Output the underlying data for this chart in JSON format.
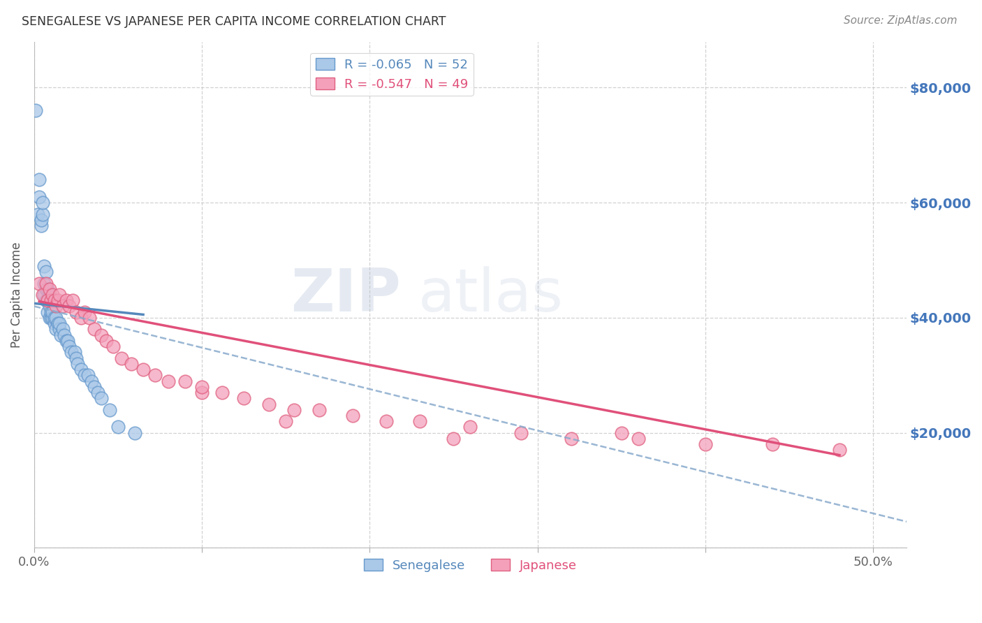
{
  "title": "SENEGALESE VS JAPANESE PER CAPITA INCOME CORRELATION CHART",
  "source": "Source: ZipAtlas.com",
  "ylabel": "Per Capita Income",
  "yticks": [
    0,
    20000,
    40000,
    60000,
    80000
  ],
  "ytick_labels": [
    "",
    "$20,000",
    "$40,000",
    "$60,000",
    "$80,000"
  ],
  "ylim": [
    0,
    88000
  ],
  "xlim": [
    0.0,
    0.52
  ],
  "legend_blue_r": "R = -0.065",
  "legend_blue_n": "N = 52",
  "legend_pink_r": "R = -0.547",
  "legend_pink_n": "N = 49",
  "blue_fill": "#aac8e8",
  "blue_edge": "#6699cc",
  "pink_fill": "#f4a0bb",
  "pink_edge": "#e06080",
  "blue_line": "#5588bb",
  "pink_line": "#e0507a",
  "dash_line": "#88aacc",
  "watermark_zip": "ZIP",
  "watermark_atlas": "atlas",
  "senegalese_x": [
    0.001,
    0.002,
    0.003,
    0.003,
    0.004,
    0.004,
    0.005,
    0.005,
    0.006,
    0.006,
    0.006,
    0.007,
    0.007,
    0.007,
    0.008,
    0.008,
    0.008,
    0.009,
    0.009,
    0.009,
    0.01,
    0.01,
    0.01,
    0.011,
    0.011,
    0.012,
    0.012,
    0.013,
    0.013,
    0.014,
    0.015,
    0.015,
    0.016,
    0.017,
    0.018,
    0.019,
    0.02,
    0.021,
    0.022,
    0.024,
    0.025,
    0.026,
    0.028,
    0.03,
    0.032,
    0.034,
    0.036,
    0.038,
    0.04,
    0.045,
    0.05,
    0.06
  ],
  "senegalese_y": [
    76000,
    58000,
    61000,
    64000,
    56000,
    57000,
    58000,
    60000,
    44000,
    46000,
    49000,
    43000,
    45000,
    48000,
    41000,
    43000,
    45000,
    40000,
    42000,
    44000,
    40000,
    41000,
    43000,
    40000,
    41000,
    39000,
    40000,
    38000,
    40000,
    39000,
    38000,
    39000,
    37000,
    38000,
    37000,
    36000,
    36000,
    35000,
    34000,
    34000,
    33000,
    32000,
    31000,
    30000,
    30000,
    29000,
    28000,
    27000,
    26000,
    24000,
    21000,
    20000
  ],
  "japanese_x": [
    0.003,
    0.005,
    0.007,
    0.008,
    0.009,
    0.01,
    0.011,
    0.012,
    0.013,
    0.014,
    0.015,
    0.017,
    0.019,
    0.021,
    0.023,
    0.025,
    0.028,
    0.03,
    0.033,
    0.036,
    0.04,
    0.043,
    0.047,
    0.052,
    0.058,
    0.065,
    0.072,
    0.08,
    0.09,
    0.1,
    0.112,
    0.125,
    0.14,
    0.155,
    0.17,
    0.19,
    0.21,
    0.23,
    0.26,
    0.29,
    0.32,
    0.36,
    0.4,
    0.44,
    0.48,
    0.1,
    0.15,
    0.25,
    0.35
  ],
  "japanese_y": [
    46000,
    44000,
    46000,
    43000,
    45000,
    43000,
    44000,
    43000,
    42000,
    43000,
    44000,
    42000,
    43000,
    42000,
    43000,
    41000,
    40000,
    41000,
    40000,
    38000,
    37000,
    36000,
    35000,
    33000,
    32000,
    31000,
    30000,
    29000,
    29000,
    27000,
    27000,
    26000,
    25000,
    24000,
    24000,
    23000,
    22000,
    22000,
    21000,
    20000,
    19000,
    19000,
    18000,
    18000,
    17000,
    28000,
    22000,
    19000,
    20000
  ]
}
